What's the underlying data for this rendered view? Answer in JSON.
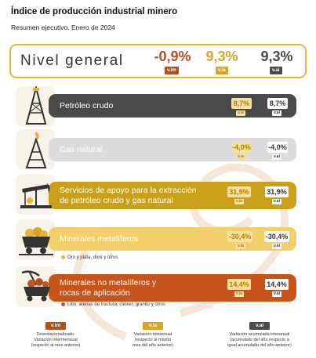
{
  "header": {
    "title": "Índice de producción industrial minero",
    "subtitle": "Resumen ejecutivo. Enero de 2024"
  },
  "general": {
    "label": "Nivel general",
    "vim": {
      "value": "-0,9%",
      "badge": "v.im"
    },
    "via": {
      "value": "9,3%",
      "badge": "v.ia"
    },
    "vai": {
      "value": "9,3%",
      "badge": "v.ai"
    }
  },
  "sectors": [
    {
      "name": "Petróleo crudo",
      "vim": "",
      "via": {
        "value": "8,7%",
        "badge": "v.ia"
      },
      "vai": {
        "value": "8,7%",
        "badge": "v.ai"
      },
      "color": "#4a4a4a",
      "icon": "oil-derrick-icon"
    },
    {
      "name": "Gas natural",
      "vim": "",
      "via": {
        "value": "-4,0%",
        "badge": "v.ia"
      },
      "vai": {
        "value": "-4,0%",
        "badge": "v.ai"
      },
      "color": "#dcdcdc",
      "icon": "gas-derrick-icon"
    },
    {
      "name_lines": [
        "Servicios de apoyo para la extracción",
        "de petróleo crudo y gas natural"
      ],
      "via": {
        "value": "31,9%",
        "badge": "v.ia"
      },
      "vai": {
        "value": "31,9%",
        "badge": "v.ai"
      },
      "color": "#c9a019",
      "icon": "pumpjack-icon"
    },
    {
      "name": "Minerales metalíferos",
      "via": {
        "value": "-30,4%",
        "badge": "v.ia"
      },
      "vai": {
        "value": "-30,4%",
        "badge": "v.ai"
      },
      "color": "#f2cf6a",
      "icon": "mine-cart-icon",
      "note": "Oro y plata, doré y otros"
    },
    {
      "name_lines": [
        "Minerales no metalíferos y",
        "rocas de aplicación"
      ],
      "via": {
        "value": "14,4%",
        "badge": "v.ia"
      },
      "vai": {
        "value": "14,4%",
        "badge": "v.ai"
      },
      "color": "#c7541a",
      "icon": "pickaxe-cart-icon",
      "note": "Litio, arenas de fractura, clinker, granito y otros"
    }
  ],
  "legend": [
    {
      "badge": "v.im",
      "lines": [
        "Desestacionalizado.",
        "Variación intermensual",
        "(respecto al mes anterior)"
      ],
      "color": "#b5501c"
    },
    {
      "badge": "v.ia",
      "lines": [
        "Variación interanual",
        "(respecto al mismo",
        "mes del año anterior)"
      ],
      "color": "#d9a525"
    },
    {
      "badge": "v.ai",
      "lines": [
        "Variación acumulada interanual",
        "(acumulado del año respecto a",
        "igual acumulado del año anterior)"
      ],
      "color": "#4a4a4a"
    }
  ],
  "colors": {
    "vim": "#b5501c",
    "via": "#d9a525",
    "vai": "#4a4a4a",
    "accent": "#e7b53a"
  }
}
